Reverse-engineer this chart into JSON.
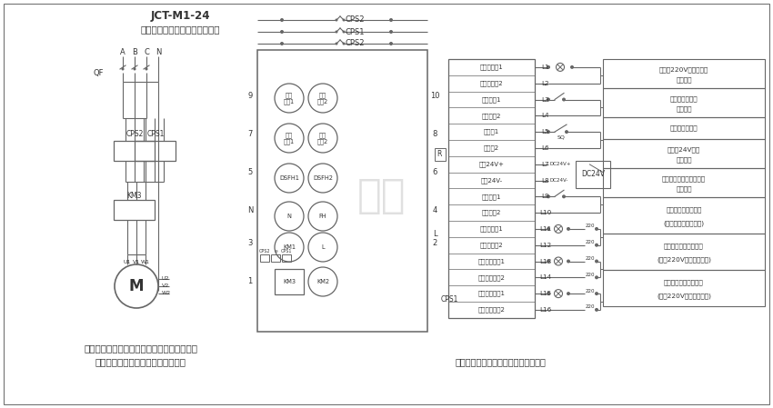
{
  "title1": "JCT-M1-24",
  "title2": "消防兼平时两用双速风机控制器",
  "bg_color": "#ffffff",
  "lc": "#666666",
  "note1": "硬线启动与消防接点控制的是风机的高速状态",
  "note2": "远程楼宇控制的是风机的低速状态。",
  "note3": "本图仅供参考，请按实际需求修改使用",
  "terminal_labels": [
    "硬启指示灯1",
    "硬启指示灯2",
    "硬线启动1",
    "硬线启动2",
    "防火阀1",
    "防火阀2",
    "消防24V+",
    "消防24V-",
    "远程楼宇1",
    "远程楼宇2",
    "手自动反馈1",
    "手自动反馈2",
    "低速运行反馈1",
    "低速运行反馈2",
    "高速运行反馈1",
    "高速运行反馈2"
  ],
  "terminal_ids": [
    "L1",
    "L2",
    "L3",
    "L4",
    "L5",
    "L6",
    "L7",
    "L8",
    "L9",
    "L10",
    "L11",
    "L12",
    "L13",
    "L14",
    "L15",
    "L16"
  ],
  "right_labels": [
    [
      "接外控220V运行指示灯",
      "高速启动"
    ],
    [
      "接外控启动按钮",
      "高速启动"
    ],
    [
      "防火阀限位开关",
      ""
    ],
    [
      "接消防24V信号",
      "高速启动"
    ],
    [
      "接楼宇集中控制启动信号",
      "低速启动"
    ],
    [
      "手自动状态信号反馈",
      "(手动断开、自动闭合)"
    ],
    [
      "低速运行状态信号反馈",
      "(外接220V电源和信号灯)"
    ],
    [
      "高速运行状态信号反馈",
      "(外接220V电源和信号灯)"
    ]
  ],
  "right_row_heights": [
    32,
    32,
    24,
    32,
    32,
    40,
    40,
    40
  ]
}
